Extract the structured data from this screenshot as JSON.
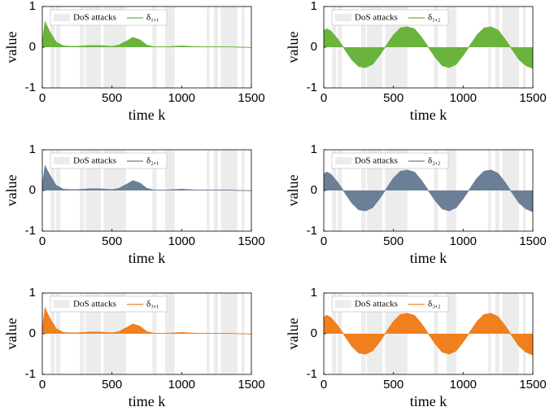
{
  "attack_intervals": [
    [
      60,
      90
    ],
    [
      100,
      130
    ],
    [
      270,
      300
    ],
    [
      310,
      420
    ],
    [
      440,
      600
    ],
    [
      790,
      820
    ],
    [
      880,
      950
    ],
    [
      1180,
      1200
    ],
    [
      1230,
      1260
    ],
    [
      1280,
      1400
    ],
    [
      1430,
      1450
    ]
  ],
  "chart_data": [
    {
      "type": "area",
      "ylabel": "value",
      "xlabel": "time k",
      "attack_label": "DoS attacks",
      "xlim": [
        0,
        1500
      ],
      "ylim": [
        -1,
        1
      ],
      "xticks": [
        0,
        500,
        1000,
        1500
      ],
      "yticks": [
        -1,
        0,
        1
      ],
      "x": [
        0,
        20,
        50,
        100,
        150,
        200,
        250,
        300,
        350,
        400,
        450,
        500,
        550,
        600,
        650,
        700,
        750,
        800,
        850,
        900,
        950,
        1000,
        1050,
        1100,
        1150,
        1200,
        1250,
        1300,
        1350,
        1400,
        1450,
        1500
      ],
      "series": [
        {
          "name": "δ₁,₁",
          "color": "#6ab43e",
          "values": [
            0.1,
            0.62,
            0.4,
            0.12,
            0.03,
            0.02,
            0.02,
            0.03,
            0.04,
            0.04,
            0.03,
            0.02,
            0.05,
            0.14,
            0.24,
            0.18,
            0.05,
            0.01,
            0.01,
            0.01,
            0.02,
            0.03,
            0.02,
            0.01,
            0.01,
            0.01,
            0.01,
            0.01,
            0.01,
            0,
            0,
            -0.01
          ]
        }
      ]
    },
    {
      "type": "area",
      "ylabel": "value",
      "xlabel": "time k",
      "attack_label": "DoS attacks",
      "xlim": [
        0,
        1500
      ],
      "ylim": [
        -1,
        1
      ],
      "xticks": [
        0,
        500,
        1000,
        1500
      ],
      "yticks": [
        -1,
        0,
        1
      ],
      "x": [
        0,
        20,
        50,
        100,
        150,
        200,
        250,
        300,
        350,
        400,
        450,
        500,
        550,
        600,
        650,
        700,
        750,
        800,
        850,
        900,
        950,
        1000,
        1050,
        1100,
        1150,
        1200,
        1250,
        1300,
        1350,
        1400,
        1450,
        1500
      ],
      "series": [
        {
          "name": "δ₁,₂",
          "color": "#6ab43e",
          "values": [
            0.4,
            0.45,
            0.4,
            0.2,
            -0.05,
            -0.3,
            -0.47,
            -0.5,
            -0.42,
            -0.2,
            0.05,
            0.3,
            0.47,
            0.5,
            0.45,
            0.25,
            0,
            -0.25,
            -0.45,
            -0.5,
            -0.42,
            -0.2,
            0.05,
            0.3,
            0.47,
            0.5,
            0.42,
            0.2,
            -0.05,
            -0.3,
            -0.45,
            -0.52
          ]
        }
      ]
    },
    {
      "type": "area",
      "ylabel": "value",
      "xlabel": "time k",
      "attack_label": "DoS attacks",
      "xlim": [
        0,
        1500
      ],
      "ylim": [
        -1,
        1
      ],
      "xticks": [
        0,
        500,
        1000,
        1500
      ],
      "yticks": [
        -1,
        0,
        1
      ],
      "x": [
        0,
        20,
        50,
        100,
        150,
        200,
        250,
        300,
        350,
        400,
        450,
        500,
        550,
        600,
        650,
        700,
        750,
        800,
        850,
        900,
        950,
        1000,
        1050,
        1100,
        1150,
        1200,
        1250,
        1300,
        1350,
        1400,
        1450,
        1500
      ],
      "series": [
        {
          "name": "δ₂,₁",
          "color": "#6b7f96",
          "values": [
            0.1,
            0.6,
            0.4,
            0.12,
            0.03,
            0.02,
            0.02,
            0.03,
            0.04,
            0.04,
            0.03,
            0.02,
            0.05,
            0.14,
            0.24,
            0.18,
            0.05,
            0.01,
            0.01,
            0.01,
            0.02,
            0.03,
            0.02,
            0.01,
            0.01,
            0.01,
            0.01,
            0.01,
            0.01,
            0,
            0,
            -0.01
          ]
        }
      ]
    },
    {
      "type": "area",
      "ylabel": "value",
      "xlabel": "time k",
      "attack_label": "DoS attacks",
      "xlim": [
        0,
        1500
      ],
      "ylim": [
        -1,
        1
      ],
      "xticks": [
        0,
        500,
        1000,
        1500
      ],
      "yticks": [
        -1,
        0,
        1
      ],
      "x": [
        0,
        20,
        50,
        100,
        150,
        200,
        250,
        300,
        350,
        400,
        450,
        500,
        550,
        600,
        650,
        700,
        750,
        800,
        850,
        900,
        950,
        1000,
        1050,
        1100,
        1150,
        1200,
        1250,
        1300,
        1350,
        1400,
        1450,
        1500
      ],
      "series": [
        {
          "name": "δ₂,₂",
          "color": "#6b7f96",
          "values": [
            0.4,
            0.45,
            0.4,
            0.2,
            -0.05,
            -0.3,
            -0.47,
            -0.5,
            -0.42,
            -0.2,
            0.05,
            0.3,
            0.47,
            0.5,
            0.45,
            0.25,
            0,
            -0.25,
            -0.45,
            -0.5,
            -0.42,
            -0.2,
            0.05,
            0.3,
            0.47,
            0.5,
            0.42,
            0.2,
            -0.05,
            -0.3,
            -0.45,
            -0.52
          ]
        }
      ]
    },
    {
      "type": "area",
      "ylabel": "value",
      "xlabel": "time k",
      "attack_label": "DoS attacks",
      "xlim": [
        0,
        1500
      ],
      "ylim": [
        -1,
        1
      ],
      "xticks": [
        0,
        500,
        1000,
        1500
      ],
      "yticks": [
        -1,
        0,
        1
      ],
      "x": [
        0,
        20,
        50,
        100,
        150,
        200,
        250,
        300,
        350,
        400,
        450,
        500,
        550,
        600,
        650,
        700,
        750,
        800,
        850,
        900,
        950,
        1000,
        1050,
        1100,
        1150,
        1200,
        1250,
        1300,
        1350,
        1400,
        1450,
        1500
      ],
      "series": [
        {
          "name": "δ₃,₁",
          "color": "#f07f1e",
          "values": [
            0.1,
            0.63,
            0.4,
            0.12,
            0.03,
            0.02,
            0.02,
            0.03,
            0.04,
            0.04,
            0.03,
            0.02,
            0.05,
            0.14,
            0.24,
            0.18,
            0.05,
            0.01,
            0.01,
            0.01,
            0.02,
            0.03,
            0.02,
            0.01,
            0.01,
            0.01,
            0.01,
            0.01,
            0.01,
            0,
            0,
            -0.01
          ]
        }
      ]
    },
    {
      "type": "area",
      "ylabel": "value",
      "xlabel": "time k",
      "attack_label": "DoS attacks",
      "xlim": [
        0,
        1500
      ],
      "ylim": [
        -1,
        1
      ],
      "xticks": [
        0,
        500,
        1000,
        1500
      ],
      "yticks": [
        -1,
        0,
        1
      ],
      "x": [
        0,
        20,
        50,
        100,
        150,
        200,
        250,
        300,
        350,
        400,
        450,
        500,
        550,
        600,
        650,
        700,
        750,
        800,
        850,
        900,
        950,
        1000,
        1050,
        1100,
        1150,
        1200,
        1250,
        1300,
        1350,
        1400,
        1450,
        1500
      ],
      "series": [
        {
          "name": "δ₃,₂",
          "color": "#f07f1e",
          "values": [
            0.4,
            0.45,
            0.4,
            0.2,
            -0.05,
            -0.3,
            -0.47,
            -0.5,
            -0.42,
            -0.2,
            0.05,
            0.3,
            0.47,
            0.5,
            0.45,
            0.25,
            0,
            -0.25,
            -0.45,
            -0.5,
            -0.42,
            -0.2,
            0.05,
            0.3,
            0.47,
            0.5,
            0.42,
            0.2,
            -0.05,
            -0.3,
            -0.45,
            -0.52
          ]
        }
      ]
    }
  ]
}
